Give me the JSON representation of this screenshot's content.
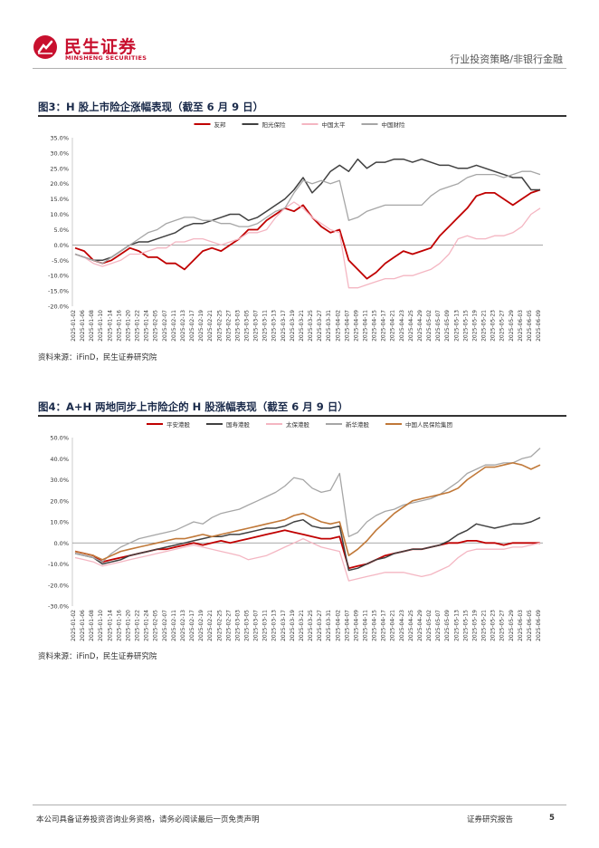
{
  "header": {
    "brand_cn": "民生证券",
    "brand_en": "MINSHENG SECURITIES",
    "section": "行业投资策略/非银行金融"
  },
  "footer": {
    "disclaimer": "本公司具备证券投资咨询业务资格，请务必阅读最后一页免责声明",
    "report_type": "证券研究报告",
    "page": "5"
  },
  "colors": {
    "brand": "#c8102e"
  },
  "chart_data": [
    {
      "id": "fig3",
      "type": "line",
      "title": "图3：H 股上市险企涨幅表现（截至 6 月 9 日）",
      "source": "资料来源：iFinD，民生证券研究院",
      "ylim": [
        -20,
        35
      ],
      "yticks": [
        -20,
        -15,
        -10,
        -5,
        0,
        5,
        10,
        15,
        20,
        25,
        30,
        35
      ],
      "ytick_labels": [
        "-20.0%",
        "-15.0%",
        "-10.0%",
        "-5.0%",
        "0.0%",
        "5.0%",
        "10.0%",
        "15.0%",
        "20.0%",
        "25.0%",
        "30.0%",
        "35.0%"
      ],
      "dates": [
        "2025-01-02",
        "2025-01-06",
        "2025-01-08",
        "2025-01-10",
        "2025-01-14",
        "2025-01-16",
        "2025-01-20",
        "2025-01-22",
        "2025-01-24",
        "2025-02-05",
        "2025-02-07",
        "2025-02-11",
        "2025-02-13",
        "2025-02-17",
        "2025-02-19",
        "2025-02-21",
        "2025-02-25",
        "2025-02-27",
        "2025-03-03",
        "2025-03-05",
        "2025-03-07",
        "2025-03-11",
        "2025-03-13",
        "2025-03-17",
        "2025-03-19",
        "2025-03-21",
        "2025-03-25",
        "2025-03-27",
        "2025-03-31",
        "2025-04-02",
        "2025-04-07",
        "2025-04-09",
        "2025-04-11",
        "2025-04-15",
        "2025-04-17",
        "2025-04-21",
        "2025-04-23",
        "2025-04-25",
        "2025-04-29",
        "2025-05-02",
        "2025-05-07",
        "2025-05-09",
        "2025-05-13",
        "2025-05-15",
        "2025-05-19",
        "2025-05-21",
        "2025-05-23",
        "2025-05-27",
        "2025-05-29",
        "2025-06-03",
        "2025-06-05",
        "2025-06-09"
      ],
      "series": [
        {
          "name": "友邦",
          "color": "#c00000",
          "width": 1.8,
          "values": [
            -1,
            -2,
            -5,
            -6,
            -5,
            -3,
            -1,
            -2,
            -4,
            -4,
            -6,
            -6,
            -8,
            -5,
            -2,
            -1,
            -2,
            0,
            2,
            5,
            5,
            8,
            10,
            12,
            11,
            13,
            9,
            6,
            4,
            5,
            -5,
            -8,
            -11,
            -9,
            -6,
            -4,
            -2,
            -3,
            -2,
            -1,
            3,
            6,
            9,
            12,
            16,
            17,
            17,
            15,
            13,
            15,
            17,
            18
          ]
        },
        {
          "name": "阳光保险",
          "color": "#404040",
          "width": 1.5,
          "values": [
            -3,
            -4,
            -5,
            -5,
            -4,
            -2,
            0,
            1,
            1,
            2,
            3,
            4,
            6,
            7,
            7,
            8,
            9,
            10,
            10,
            8,
            9,
            11,
            13,
            15,
            18,
            22,
            17,
            20,
            24,
            26,
            24,
            28,
            25,
            27,
            27,
            28,
            28,
            27,
            28,
            27,
            26,
            26,
            25,
            25,
            26,
            25,
            24,
            23,
            22,
            22,
            18,
            18
          ]
        },
        {
          "name": "中国太平",
          "color": "#f4b6c2",
          "width": 1.3,
          "values": [
            -3,
            -4,
            -6,
            -7,
            -6,
            -5,
            -3,
            -3,
            -2,
            -1,
            -1,
            1,
            1,
            2,
            2,
            1,
            0,
            1,
            2,
            4,
            4,
            5,
            9,
            12,
            14,
            12,
            9,
            7,
            5,
            4,
            -14,
            -14,
            -13,
            -12,
            -11,
            -11,
            -10,
            -10,
            -9,
            -8,
            -6,
            -3,
            2,
            3,
            2,
            2,
            3,
            3,
            4,
            6,
            10,
            12
          ]
        },
        {
          "name": "中国财险",
          "color": "#a6a6a6",
          "width": 1.3,
          "values": [
            -3,
            -4,
            -5,
            -6,
            -4,
            -2,
            0,
            2,
            4,
            5,
            7,
            8,
            9,
            9,
            8,
            8,
            7,
            7,
            6,
            6,
            7,
            9,
            11,
            12,
            17,
            21,
            20,
            21,
            20,
            21,
            8,
            9,
            11,
            12,
            13,
            13,
            13,
            13,
            13,
            16,
            18,
            19,
            20,
            22,
            23,
            23,
            23,
            22,
            23,
            24,
            24,
            23
          ]
        }
      ]
    },
    {
      "id": "fig4",
      "type": "line",
      "title": "图4：A+H 两地同步上市险企的 H 股涨幅表现（截至 6 月 9 日）",
      "source": "资料来源：iFinD，民生证券研究院",
      "ylim": [
        -30,
        50
      ],
      "yticks": [
        -30,
        -20,
        -10,
        0,
        10,
        20,
        30,
        40,
        50
      ],
      "ytick_labels": [
        "-30.0%",
        "-20.0%",
        "-10.0%",
        "0.0%",
        "10.0%",
        "20.0%",
        "30.0%",
        "40.0%",
        "50.0%"
      ],
      "dates": [
        "2025-01-02",
        "2025-01-06",
        "2025-01-08",
        "2025-01-10",
        "2025-01-14",
        "2025-01-16",
        "2025-01-20",
        "2025-01-22",
        "2025-01-24",
        "2025-02-05",
        "2025-02-07",
        "2025-02-11",
        "2025-02-13",
        "2025-02-17",
        "2025-02-19",
        "2025-02-21",
        "2025-02-25",
        "2025-02-27",
        "2025-03-03",
        "2025-03-05",
        "2025-03-07",
        "2025-03-11",
        "2025-03-13",
        "2025-03-17",
        "2025-03-19",
        "2025-03-21",
        "2025-03-25",
        "2025-03-27",
        "2025-03-31",
        "2025-04-02",
        "2025-04-07",
        "2025-04-09",
        "2025-04-11",
        "2025-04-15",
        "2025-04-17",
        "2025-04-21",
        "2025-04-23",
        "2025-04-25",
        "2025-04-29",
        "2025-05-02",
        "2025-05-07",
        "2025-05-09",
        "2025-05-13",
        "2025-05-15",
        "2025-05-19",
        "2025-05-21",
        "2025-05-23",
        "2025-05-27",
        "2025-05-29",
        "2025-06-03",
        "2025-06-05",
        "2025-06-09"
      ],
      "series": [
        {
          "name": "平安港股",
          "color": "#c00000",
          "width": 1.8,
          "values": [
            -4,
            -5,
            -6,
            -9,
            -8,
            -7,
            -6,
            -5,
            -4,
            -3,
            -3,
            -2,
            -1,
            0,
            -1,
            0,
            1,
            0,
            1,
            2,
            3,
            4,
            5,
            6,
            5,
            4,
            3,
            2,
            2,
            3,
            -12,
            -11,
            -10,
            -8,
            -6,
            -5,
            -4,
            -3,
            -3,
            -2,
            -1,
            0,
            0,
            1,
            1,
            0,
            0,
            -1,
            0,
            0,
            0,
            0
          ]
        },
        {
          "name": "国寿港股",
          "color": "#404040",
          "width": 1.5,
          "values": [
            -5,
            -6,
            -7,
            -10,
            -9,
            -8,
            -6,
            -5,
            -4,
            -3,
            -2,
            -1,
            0,
            1,
            2,
            3,
            3,
            4,
            4,
            5,
            6,
            7,
            7,
            8,
            10,
            11,
            8,
            7,
            7,
            8,
            -13,
            -12,
            -10,
            -8,
            -7,
            -5,
            -4,
            -3,
            -3,
            -2,
            -1,
            1,
            4,
            6,
            9,
            8,
            7,
            8,
            9,
            9,
            10,
            12
          ]
        },
        {
          "name": "太保港股",
          "color": "#f4b6c2",
          "width": 1.3,
          "values": [
            -7,
            -8,
            -9,
            -11,
            -10,
            -9,
            -8,
            -7,
            -6,
            -5,
            -4,
            -3,
            -2,
            -1,
            -2,
            -3,
            -4,
            -5,
            -6,
            -8,
            -7,
            -6,
            -4,
            -2,
            0,
            2,
            0,
            -2,
            -3,
            -4,
            -18,
            -17,
            -16,
            -15,
            -14,
            -14,
            -14,
            -15,
            -16,
            -15,
            -13,
            -11,
            -7,
            -4,
            -3,
            -3,
            -3,
            -3,
            -2,
            -2,
            -1,
            0
          ]
        },
        {
          "name": "新华港股",
          "color": "#a6a6a6",
          "width": 1.3,
          "values": [
            -5,
            -6,
            -7,
            -9,
            -5,
            -2,
            0,
            2,
            3,
            4,
            5,
            6,
            8,
            10,
            9,
            12,
            14,
            15,
            16,
            18,
            20,
            22,
            24,
            27,
            31,
            30,
            26,
            24,
            25,
            33,
            3,
            5,
            10,
            13,
            15,
            16,
            18,
            19,
            20,
            21,
            23,
            26,
            29,
            33,
            35,
            37,
            37,
            38,
            38,
            40,
            41,
            45
          ]
        },
        {
          "name": "中国人民保险集团",
          "color": "#c07838",
          "width": 1.6,
          "values": [
            -4,
            -5,
            -6,
            -8,
            -6,
            -4,
            -3,
            -2,
            -1,
            0,
            1,
            2,
            2,
            3,
            4,
            3,
            4,
            5,
            6,
            7,
            8,
            9,
            10,
            11,
            13,
            14,
            12,
            10,
            9,
            10,
            -6,
            -3,
            1,
            6,
            10,
            14,
            17,
            20,
            21,
            22,
            23,
            24,
            26,
            30,
            33,
            36,
            36,
            37,
            38,
            37,
            35,
            37
          ]
        }
      ]
    }
  ]
}
